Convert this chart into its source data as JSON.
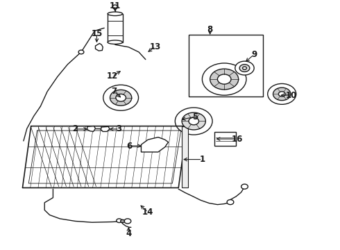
{
  "bg_color": "#ffffff",
  "line_color": "#1a1a1a",
  "figsize": [
    4.9,
    3.6
  ],
  "dpi": 100,
  "labels": {
    "1": [
      0.555,
      0.635,
      0.605,
      0.635
    ],
    "2": [
      0.265,
      0.518,
      0.225,
      0.518
    ],
    "3": [
      0.315,
      0.518,
      0.345,
      0.518
    ],
    "4": [
      0.385,
      0.9,
      0.385,
      0.93
    ],
    "5": [
      0.59,
      0.49,
      0.64,
      0.49
    ],
    "6": [
      0.42,
      0.64,
      0.378,
      0.64
    ],
    "7": [
      0.358,
      0.4,
      0.335,
      0.37
    ],
    "8": [
      0.62,
      0.13,
      0.62,
      0.108
    ],
    "9": [
      0.695,
      0.225,
      0.72,
      0.195
    ],
    "10": [
      0.83,
      0.395,
      0.862,
      0.395
    ],
    "11": [
      0.338,
      0.035,
      0.338,
      0.01
    ],
    "12": [
      0.36,
      0.27,
      0.332,
      0.295
    ],
    "13": [
      0.43,
      0.21,
      0.455,
      0.185
    ],
    "14": [
      0.405,
      0.81,
      0.435,
      0.845
    ],
    "15": [
      0.282,
      0.15,
      0.282,
      0.122
    ],
    "16": [
      0.66,
      0.555,
      0.7,
      0.555
    ]
  }
}
